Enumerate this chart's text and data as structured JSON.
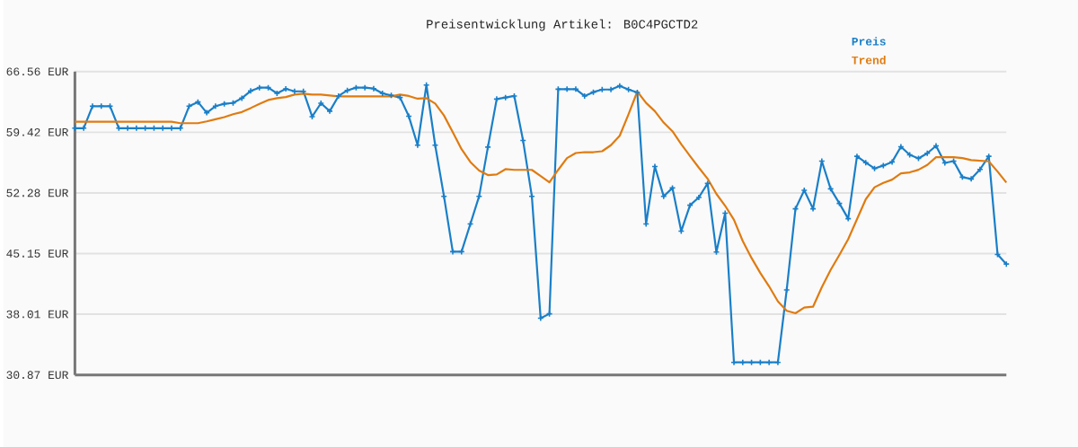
{
  "chart_data": {
    "type": "line",
    "title": "Preisentwicklung Artikel: B0C4PGCTD2",
    "categories": [
      null,
      null,
      null,
      null,
      null,
      null,
      null,
      null,
      null,
      null,
      null,
      null,
      null,
      null,
      null,
      null,
      null,
      null,
      null,
      null,
      null,
      null,
      null,
      null,
      null,
      null,
      null,
      null,
      null,
      null,
      null,
      null,
      null,
      null,
      null,
      null,
      null,
      null,
      null,
      null,
      null,
      null,
      null,
      null,
      null,
      null,
      null,
      null,
      null,
      null,
      null,
      null,
      null,
      null,
      null,
      null,
      null,
      null,
      null,
      null,
      null,
      null,
      null,
      null,
      null,
      null,
      null,
      null,
      null,
      null,
      null,
      null,
      null,
      null,
      null,
      null,
      null,
      null,
      null,
      null,
      null,
      null,
      null,
      null,
      null,
      null,
      null,
      null,
      null,
      null,
      null,
      null,
      null,
      null,
      null,
      null,
      null,
      null,
      null,
      null,
      null,
      null,
      null,
      null,
      null,
      null,
      null
    ],
    "series": [
      {
        "name": "Preis",
        "color": "#1a7fc8",
        "marker": "cross",
        "values": [
          59.9,
          59.9,
          62.49,
          62.49,
          62.49,
          59.9,
          59.9,
          59.9,
          59.9,
          59.9,
          59.9,
          59.9,
          59.9,
          62.49,
          62.98,
          61.72,
          62.49,
          62.77,
          62.87,
          63.43,
          64.28,
          64.67,
          64.67,
          64.0,
          64.53,
          64.24,
          64.24,
          61.26,
          62.84,
          61.9,
          63.69,
          64.35,
          64.67,
          64.67,
          64.56,
          64.0,
          63.75,
          63.51,
          61.3,
          57.9,
          64.98,
          57.9,
          51.89,
          45.37,
          45.37,
          48.63,
          51.89,
          57.68,
          63.33,
          63.51,
          63.69,
          58.45,
          51.89,
          37.54,
          38.06,
          64.49,
          64.49,
          64.49,
          63.69,
          64.14,
          64.45,
          64.45,
          64.88,
          64.45,
          64.1,
          48.63,
          55.4,
          51.89,
          52.87,
          47.79,
          50.84,
          51.75,
          53.4,
          45.33,
          49.9,
          32.35,
          32.35,
          32.35,
          32.35,
          32.35,
          32.35,
          40.87,
          50.42,
          52.59,
          50.42,
          56.03,
          52.77,
          51.05,
          49.26,
          56.59,
          55.85,
          55.16,
          55.51,
          55.93,
          57.72,
          56.77,
          56.35,
          56.95,
          57.82,
          55.82,
          56.03,
          54.14,
          53.93,
          55.05,
          56.59,
          45.05,
          43.92
        ]
      },
      {
        "name": "Trend",
        "color": "#e07b10",
        "marker": "none",
        "values": [
          60.66,
          60.66,
          60.66,
          60.66,
          60.66,
          60.66,
          60.66,
          60.66,
          60.66,
          60.66,
          60.66,
          60.66,
          60.49,
          60.49,
          60.49,
          60.7,
          60.95,
          61.2,
          61.54,
          61.8,
          62.27,
          62.77,
          63.22,
          63.43,
          63.57,
          63.85,
          63.96,
          63.85,
          63.85,
          63.75,
          63.64,
          63.64,
          63.64,
          63.64,
          63.64,
          63.64,
          63.64,
          63.85,
          63.69,
          63.37,
          63.43,
          62.8,
          61.4,
          59.43,
          57.43,
          55.93,
          54.91,
          54.38,
          54.45,
          55.08,
          55.0,
          55.0,
          55.0,
          54.27,
          53.54,
          55.0,
          56.38,
          56.98,
          57.08,
          57.08,
          57.19,
          57.9,
          59.01,
          61.54,
          64.21,
          62.88,
          61.9,
          60.56,
          59.54,
          58.03,
          56.63,
          55.26,
          53.96,
          52.17,
          50.77,
          49.12,
          46.63,
          44.63,
          42.87,
          41.29,
          39.53,
          38.42,
          38.13,
          38.8,
          38.9,
          41.19,
          43.22,
          44.99,
          46.84,
          49.19,
          51.54,
          52.95,
          53.47,
          53.85,
          54.59,
          54.7,
          55.01,
          55.58,
          56.49,
          56.49,
          56.49,
          56.38,
          56.14,
          56.07,
          56.0,
          54.8,
          53.5
        ]
      }
    ],
    "ylim": [
      30.87,
      66.56
    ],
    "yticks": [
      {
        "value": 30.87,
        "label": "30.87 EUR"
      },
      {
        "value": 38.01,
        "label": "38.01 EUR"
      },
      {
        "value": 45.15,
        "label": "45.15 EUR"
      },
      {
        "value": 52.28,
        "label": "52.28 EUR"
      },
      {
        "value": 59.42,
        "label": "59.42 EUR"
      },
      {
        "value": 66.56,
        "label": "66.56 EUR"
      }
    ],
    "grid": "y",
    "legend": "top right",
    "tick_labels": "y"
  }
}
